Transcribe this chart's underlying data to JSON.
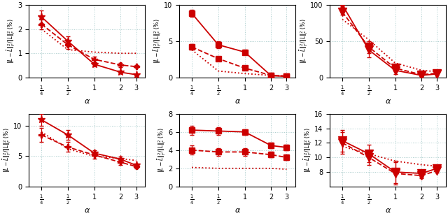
{
  "x": [
    0.25,
    0.5,
    1.0,
    2.0,
    3.0
  ],
  "subplots": [
    {
      "ylim": [
        0,
        3
      ],
      "yticks": [
        0,
        1,
        2,
        3
      ],
      "lines": [
        {
          "y": [
            2.5,
            1.5,
            0.55,
            0.22,
            0.12
          ],
          "yerr": [
            0.25,
            0.2,
            0.08,
            0.05,
            0.03
          ],
          "style": "-",
          "marker": "*",
          "ms": 8
        },
        {
          "y": [
            2.2,
            1.35,
            0.75,
            0.52,
            0.45
          ],
          "yerr": [
            0.2,
            0.18,
            0.12,
            0.08,
            0.06
          ],
          "style": "--",
          "marker": "P",
          "ms": 6
        },
        {
          "y": [
            2.0,
            1.15,
            1.05,
            1.0,
            1.0
          ],
          "yerr": [
            0.0,
            0.0,
            0.0,
            0.0,
            0.0
          ],
          "style": ":",
          "marker": "",
          "ms": 0
        }
      ]
    },
    {
      "ylim": [
        0,
        10
      ],
      "yticks": [
        0,
        5,
        10
      ],
      "lines": [
        {
          "y": [
            8.8,
            4.5,
            3.5,
            0.25,
            0.18
          ],
          "yerr": [
            0.5,
            0.5,
            0.3,
            0.08,
            0.05
          ],
          "style": "-",
          "marker": "s",
          "ms": 6
        },
        {
          "y": [
            4.2,
            2.6,
            1.3,
            0.3,
            0.22
          ],
          "yerr": [
            0.4,
            0.3,
            0.2,
            0.08,
            0.05
          ],
          "style": "--",
          "marker": "s",
          "ms": 6
        },
        {
          "y": [
            3.8,
            0.9,
            0.55,
            0.3,
            0.2
          ],
          "yerr": [
            0.0,
            0.0,
            0.0,
            0.0,
            0.0
          ],
          "style": ":",
          "marker": "",
          "ms": 0
        }
      ]
    },
    {
      "ylim": [
        0,
        100
      ],
      "yticks": [
        0,
        50,
        100
      ],
      "lines": [
        {
          "y": [
            100,
            38,
            10,
            3,
            5
          ],
          "yerr": [
            3,
            10,
            5,
            1,
            1
          ],
          "style": "-",
          "marker": "v",
          "ms": 8
        },
        {
          "y": [
            90,
            42,
            13,
            4,
            6
          ],
          "yerr": [
            4,
            8,
            4,
            1,
            1
          ],
          "style": "--",
          "marker": "v",
          "ms": 8
        },
        {
          "y": [
            80,
            52,
            20,
            10,
            8
          ],
          "yerr": [
            0.0,
            0.0,
            0.0,
            0.0,
            0.0
          ],
          "style": ":",
          "marker": "",
          "ms": 0
        }
      ]
    },
    {
      "ylim": [
        0,
        12
      ],
      "yticks": [
        0,
        5,
        10
      ],
      "lines": [
        {
          "y": [
            11.0,
            8.5,
            5.5,
            4.5,
            3.5
          ],
          "yerr": [
            1.0,
            0.8,
            0.5,
            0.4,
            0.3
          ],
          "style": "-",
          "marker": "*",
          "ms": 8
        },
        {
          "y": [
            8.5,
            6.5,
            5.2,
            4.0,
            3.3
          ],
          "yerr": [
            1.2,
            0.8,
            0.6,
            0.4,
            0.3
          ],
          "style": "--",
          "marker": "P",
          "ms": 6
        },
        {
          "y": [
            9.0,
            6.2,
            5.0,
            4.6,
            4.3
          ],
          "yerr": [
            0.0,
            0.0,
            0.0,
            0.0,
            0.0
          ],
          "style": ":",
          "marker": "",
          "ms": 0
        }
      ]
    },
    {
      "ylim": [
        0,
        8
      ],
      "yticks": [
        0,
        2,
        4,
        6,
        8
      ],
      "lines": [
        {
          "y": [
            6.2,
            6.1,
            6.0,
            4.5,
            4.3
          ],
          "yerr": [
            0.5,
            0.4,
            0.3,
            0.3,
            0.3
          ],
          "style": "-",
          "marker": "s",
          "ms": 6
        },
        {
          "y": [
            4.0,
            3.8,
            3.8,
            3.5,
            3.2
          ],
          "yerr": [
            0.5,
            0.4,
            0.4,
            0.3,
            0.3
          ],
          "style": "--",
          "marker": "s",
          "ms": 6
        },
        {
          "y": [
            2.1,
            2.0,
            2.0,
            2.0,
            1.9
          ],
          "yerr": [
            0.0,
            0.0,
            0.0,
            0.0,
            0.0
          ],
          "style": ":",
          "marker": "",
          "ms": 0
        }
      ]
    },
    {
      "ylim": [
        6,
        16
      ],
      "yticks": [
        8,
        10,
        12,
        14,
        16
      ],
      "lines": [
        {
          "y": [
            12.3,
            10.5,
            8.0,
            7.8,
            8.5
          ],
          "yerr": [
            1.5,
            1.2,
            1.5,
            0.5,
            0.3
          ],
          "style": "-",
          "marker": "v",
          "ms": 8
        },
        {
          "y": [
            12.0,
            10.0,
            7.8,
            7.5,
            8.2
          ],
          "yerr": [
            1.5,
            1.0,
            1.5,
            0.4,
            0.3
          ],
          "style": "--",
          "marker": "v",
          "ms": 8
        },
        {
          "y": [
            11.5,
            10.5,
            9.5,
            9.0,
            8.8
          ],
          "yerr": [
            0.0,
            0.0,
            0.0,
            0.0,
            0.0
          ],
          "style": ":",
          "marker": "",
          "ms": 0
        }
      ]
    }
  ],
  "color": "#cc0000",
  "grid_color": "#aacccc",
  "xtick_labels": [
    "$\\frac{1}{4}$",
    "$\\frac{1}{2}$",
    "1",
    "2",
    "3"
  ],
  "xlabel": "$\\alpha$",
  "ylabel": "$\\|L-\\bar{L}\\|_F^2/\\|L\\|_F^2$ (%)"
}
